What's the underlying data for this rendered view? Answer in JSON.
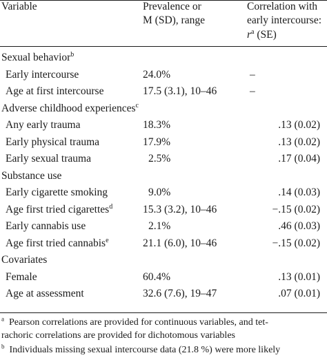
{
  "header": {
    "col1": "Variable",
    "col2_line1": "Prevalence or",
    "col2_line2": "M (SD), range",
    "col3_line1": "Correlation with",
    "col3_line2": "early intercourse:",
    "col3_r": "r",
    "col3_r_sup": "a",
    "col3_se": "(SE)"
  },
  "sections": [
    {
      "title": "Sexual behavior",
      "sup": "b",
      "rows": [
        {
          "label": "Early intercourse",
          "sup": "",
          "value": "24.0%",
          "corr": "–"
        },
        {
          "label": "Age at first intercourse",
          "sup": "",
          "value": "17.5 (3.1), 10–46",
          "corr": "–"
        }
      ]
    },
    {
      "title": "Adverse childhood experiences",
      "sup": "c",
      "rows": [
        {
          "label": "Any early trauma",
          "sup": "",
          "value": "18.3%",
          "corr": ".13 (0.02)"
        },
        {
          "label": "Early physical trauma",
          "sup": "",
          "value": "17.9%",
          "corr": ".13 (0.02)"
        },
        {
          "label": "Early sexual trauma",
          "sup": "",
          "value": "2.5%",
          "corr": ".17 (0.04)"
        }
      ]
    },
    {
      "title": "Substance use",
      "sup": "",
      "rows": [
        {
          "label": "Early cigarette smoking",
          "sup": "",
          "value": "9.0%",
          "corr": ".14 (0.03)"
        },
        {
          "label": "Age first tried cigarettes",
          "sup": "d",
          "value": "15.3 (3.2), 10–46",
          "corr": "−.15 (0.02)"
        },
        {
          "label": "Early cannabis use",
          "sup": "",
          "value": "2.1%",
          "corr": ".46 (0.03)"
        },
        {
          "label": "Age first tried cannabis",
          "sup": "e",
          "value": "21.1 (6.0), 10–46",
          "corr": "−.15 (0.02)"
        }
      ]
    },
    {
      "title": "Covariates",
      "sup": "",
      "rows": [
        {
          "label": "Female",
          "sup": "",
          "value": "60.4%",
          "corr": ".13 (0.01)"
        },
        {
          "label": "Age at assessment",
          "sup": "",
          "value": "32.6 (7.6), 19–47",
          "corr": ".07 (0.01)"
        }
      ]
    }
  ],
  "footnotes": {
    "a_mark": "a",
    "a_line1": "Pearson correlations are provided for continuous variables, and tet-",
    "a_line2": "rachoric correlations are provided for dichotomous variables",
    "b_mark": "b",
    "b_line1": "Individuals missing sexual intercourse data (21.8 %) were more likely"
  }
}
